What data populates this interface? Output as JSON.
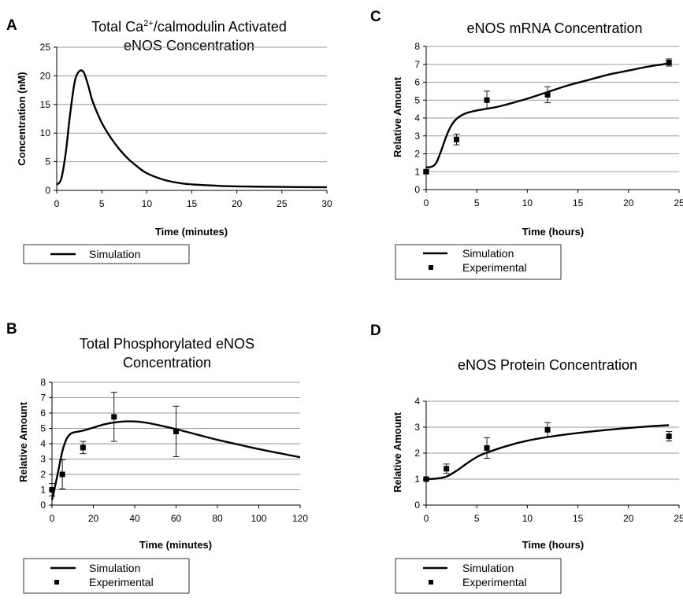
{
  "chart_data": [
    {
      "panel_label": "A",
      "type": "line",
      "title": {
        "pre": "Total Ca",
        "sup": "2+",
        "post": "/calmodulin Activated",
        "line2": "eNOS Concentration"
      },
      "xlabel": "Time (minutes)",
      "ylabel": "Concentration (nM)",
      "xlim": [
        0,
        30
      ],
      "ylim": [
        0,
        25
      ],
      "xticks": [
        0,
        5,
        10,
        15,
        20,
        25,
        30
      ],
      "yticks": [
        0,
        5,
        10,
        15,
        20,
        25
      ],
      "grid": "horizontal",
      "legend": [
        "Simulation"
      ],
      "series": [
        {
          "name": "Simulation",
          "x": [
            0,
            0.5,
            1,
            1.5,
            2,
            2.5,
            3,
            3.5,
            4,
            5,
            6,
            7,
            8,
            9,
            10,
            12,
            14,
            16,
            18,
            20,
            25,
            30
          ],
          "y": [
            1.0,
            2.0,
            6.5,
            13.5,
            19.0,
            20.8,
            20.6,
            18.3,
            15.5,
            11.8,
            9.2,
            7.1,
            5.4,
            4.1,
            3.0,
            1.8,
            1.2,
            0.95,
            0.8,
            0.7,
            0.6,
            0.55
          ]
        }
      ]
    },
    {
      "panel_label": "C",
      "type": "line",
      "title": {
        "line1": "eNOS mRNA Concentration"
      },
      "xlabel": "Time (hours)",
      "ylabel": "Relative Amount",
      "xlim": [
        0,
        25
      ],
      "ylim": [
        0,
        8
      ],
      "xticks": [
        0,
        5,
        10,
        15,
        20,
        25
      ],
      "yticks": [
        0,
        1,
        2,
        3,
        4,
        5,
        6,
        7,
        8
      ],
      "grid": "horizontal",
      "legend": [
        "Simulation",
        "Experimental"
      ],
      "series": [
        {
          "name": "Simulation",
          "x": [
            0,
            0.5,
            1,
            1.5,
            2,
            2.5,
            3,
            3.5,
            4,
            5,
            6,
            7,
            8,
            9,
            10,
            12,
            14,
            16,
            18,
            20,
            22,
            24
          ],
          "y": [
            1.25,
            1.27,
            1.5,
            2.2,
            3.0,
            3.6,
            3.95,
            4.15,
            4.28,
            4.42,
            4.52,
            4.62,
            4.76,
            4.92,
            5.08,
            5.45,
            5.82,
            6.12,
            6.42,
            6.65,
            6.88,
            7.05
          ]
        },
        {
          "name": "Experimental",
          "x": [
            0,
            3,
            6,
            12,
            24
          ],
          "y": [
            1.0,
            2.8,
            5.0,
            5.3,
            7.1
          ],
          "err": [
            0.1,
            0.3,
            0.5,
            0.45,
            0.2
          ]
        }
      ]
    },
    {
      "panel_label": "B",
      "type": "line",
      "title": {
        "line1": "Total Phosphorylated eNOS",
        "line2": "Concentration"
      },
      "xlabel": "Time (minutes)",
      "ylabel": "Relative Amount",
      "xlim": [
        0,
        120
      ],
      "ylim": [
        0,
        8
      ],
      "xticks": [
        0,
        20,
        40,
        60,
        80,
        100,
        120
      ],
      "yticks": [
        0,
        1,
        2,
        3,
        4,
        5,
        6,
        7,
        8
      ],
      "grid": "horizontal",
      "legend": [
        "Simulation",
        "Experimental"
      ],
      "series": [
        {
          "name": "Simulation",
          "x": [
            0,
            1,
            3,
            5,
            7,
            9,
            11,
            13,
            15,
            20,
            25,
            30,
            35,
            40,
            45,
            50,
            60,
            70,
            80,
            90,
            100,
            110,
            120
          ],
          "y": [
            0.35,
            0.9,
            2.2,
            3.5,
            4.3,
            4.65,
            4.75,
            4.8,
            4.85,
            5.05,
            5.25,
            5.38,
            5.45,
            5.45,
            5.38,
            5.25,
            4.95,
            4.6,
            4.25,
            3.95,
            3.65,
            3.38,
            3.12
          ]
        },
        {
          "name": "Experimental",
          "x": [
            0,
            5,
            15,
            30,
            60
          ],
          "y": [
            1.0,
            2.0,
            3.75,
            5.75,
            4.8
          ],
          "err": [
            0.4,
            0.95,
            0.4,
            1.6,
            1.65
          ]
        }
      ]
    },
    {
      "panel_label": "D",
      "type": "line",
      "title": {
        "line1": "eNOS Protein Concentration"
      },
      "xlabel": "Time (hours)",
      "ylabel": "Relative Amount",
      "xlim": [
        0,
        25
      ],
      "ylim": [
        0,
        4
      ],
      "xticks": [
        0,
        5,
        10,
        15,
        20,
        25
      ],
      "yticks": [
        0,
        1,
        2,
        3,
        4
      ],
      "grid": "horizontal",
      "legend": [
        "Simulation",
        "Experimental"
      ],
      "series": [
        {
          "name": "Simulation",
          "x": [
            0,
            1,
            2,
            3,
            4,
            5,
            6,
            8,
            10,
            12,
            14,
            16,
            18,
            20,
            22,
            24
          ],
          "y": [
            1.0,
            1.02,
            1.1,
            1.32,
            1.6,
            1.85,
            2.02,
            2.28,
            2.48,
            2.62,
            2.73,
            2.82,
            2.9,
            2.97,
            3.03,
            3.08
          ]
        },
        {
          "name": "Experimental",
          "x": [
            0,
            2,
            6,
            12,
            24
          ],
          "y": [
            1.0,
            1.4,
            2.2,
            2.9,
            2.65
          ],
          "err": [
            0.05,
            0.18,
            0.4,
            0.28,
            0.18
          ]
        }
      ]
    }
  ]
}
